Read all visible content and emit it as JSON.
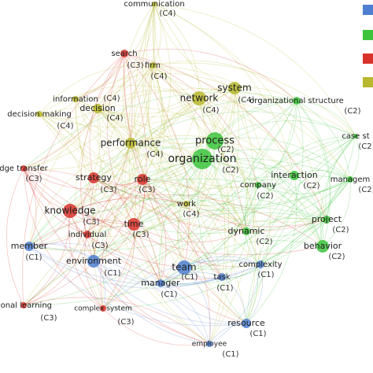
{
  "nodes": [
    {
      "label": "communication",
      "cluster": "(C4)"
    },
    {
      "label": "search",
      "cluster": "(C3)"
    },
    {
      "label": "firm",
      "cluster": "(C4)"
    },
    {
      "label": "information",
      "cluster": "(C4)"
    },
    {
      "label": "decision",
      "cluster": "(C4)"
    },
    {
      "label": "decision making",
      "cluster": "(C4)"
    },
    {
      "label": "network",
      "cluster": "(C4)"
    },
    {
      "label": "system",
      "cluster": "(C4)"
    },
    {
      "label": "organizational structure",
      "cluster": "(C2)"
    },
    {
      "label": "case st",
      "cluster": "(C2)"
    },
    {
      "label": "performance",
      "cluster": "(C4)"
    },
    {
      "label": "process",
      "cluster": "(C2)"
    },
    {
      "label": "organization",
      "cluster": "(C2)"
    },
    {
      "label": "interaction",
      "cluster": "(C2)"
    },
    {
      "label": "company",
      "cluster": "(C2)"
    },
    {
      "label": "managem",
      "cluster": "(C2)"
    },
    {
      "label": "dge transfer",
      "cluster": "(C3)"
    },
    {
      "label": "strategy",
      "cluster": "(C3)"
    },
    {
      "label": "role",
      "cluster": "(C3)"
    },
    {
      "label": "work",
      "cluster": "(C4)"
    },
    {
      "label": "knowledge",
      "cluster": "(C3)"
    },
    {
      "label": "time",
      "cluster": "(C3)"
    },
    {
      "label": "individual",
      "cluster": "(C3)"
    },
    {
      "label": "dynamic",
      "cluster": "(C2)"
    },
    {
      "label": "project",
      "cluster": "(C2)"
    },
    {
      "label": "behavior",
      "cluster": "(C2)"
    },
    {
      "label": "member",
      "cluster": "(C1)"
    },
    {
      "label": "environment",
      "cluster": "(C1)"
    },
    {
      "label": "team",
      "cluster": "(C1)"
    },
    {
      "label": "complexity",
      "cluster": "(C1)"
    },
    {
      "label": "manager",
      "cluster": "(C1)"
    },
    {
      "label": "task",
      "cluster": "(C1)"
    },
    {
      "label": "tional learning",
      "cluster": "(C3)"
    },
    {
      "label": "complex system",
      "cluster": "(C3)"
    },
    {
      "label": "resource",
      "cluster": "(C1)"
    },
    {
      "label": "employee",
      "cluster": "(C1)"
    }
  ]
}
